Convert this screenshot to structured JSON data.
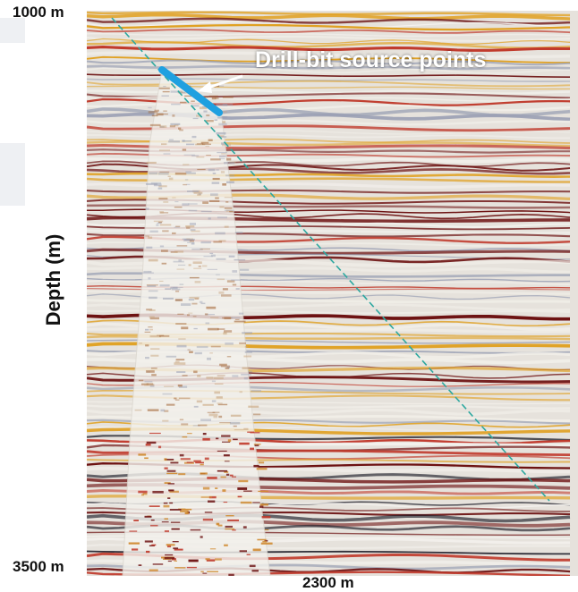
{
  "figure": {
    "y_axis_title": "Depth (m)",
    "depth_top": "1000 m",
    "depth_bottom": "3500 m",
    "x_tick_right": "2300 m",
    "annotation": "Drill-bit source points"
  },
  "colors": {
    "reflector_dark": "#6b0f0f",
    "reflector_red": "#c0392b",
    "reflector_gold": "#e0a020",
    "background": "#e6e2dc",
    "well_track": "#2ea8a0",
    "source_segment": "#1fa0e0",
    "callout_text": "#ffffff"
  }
}
